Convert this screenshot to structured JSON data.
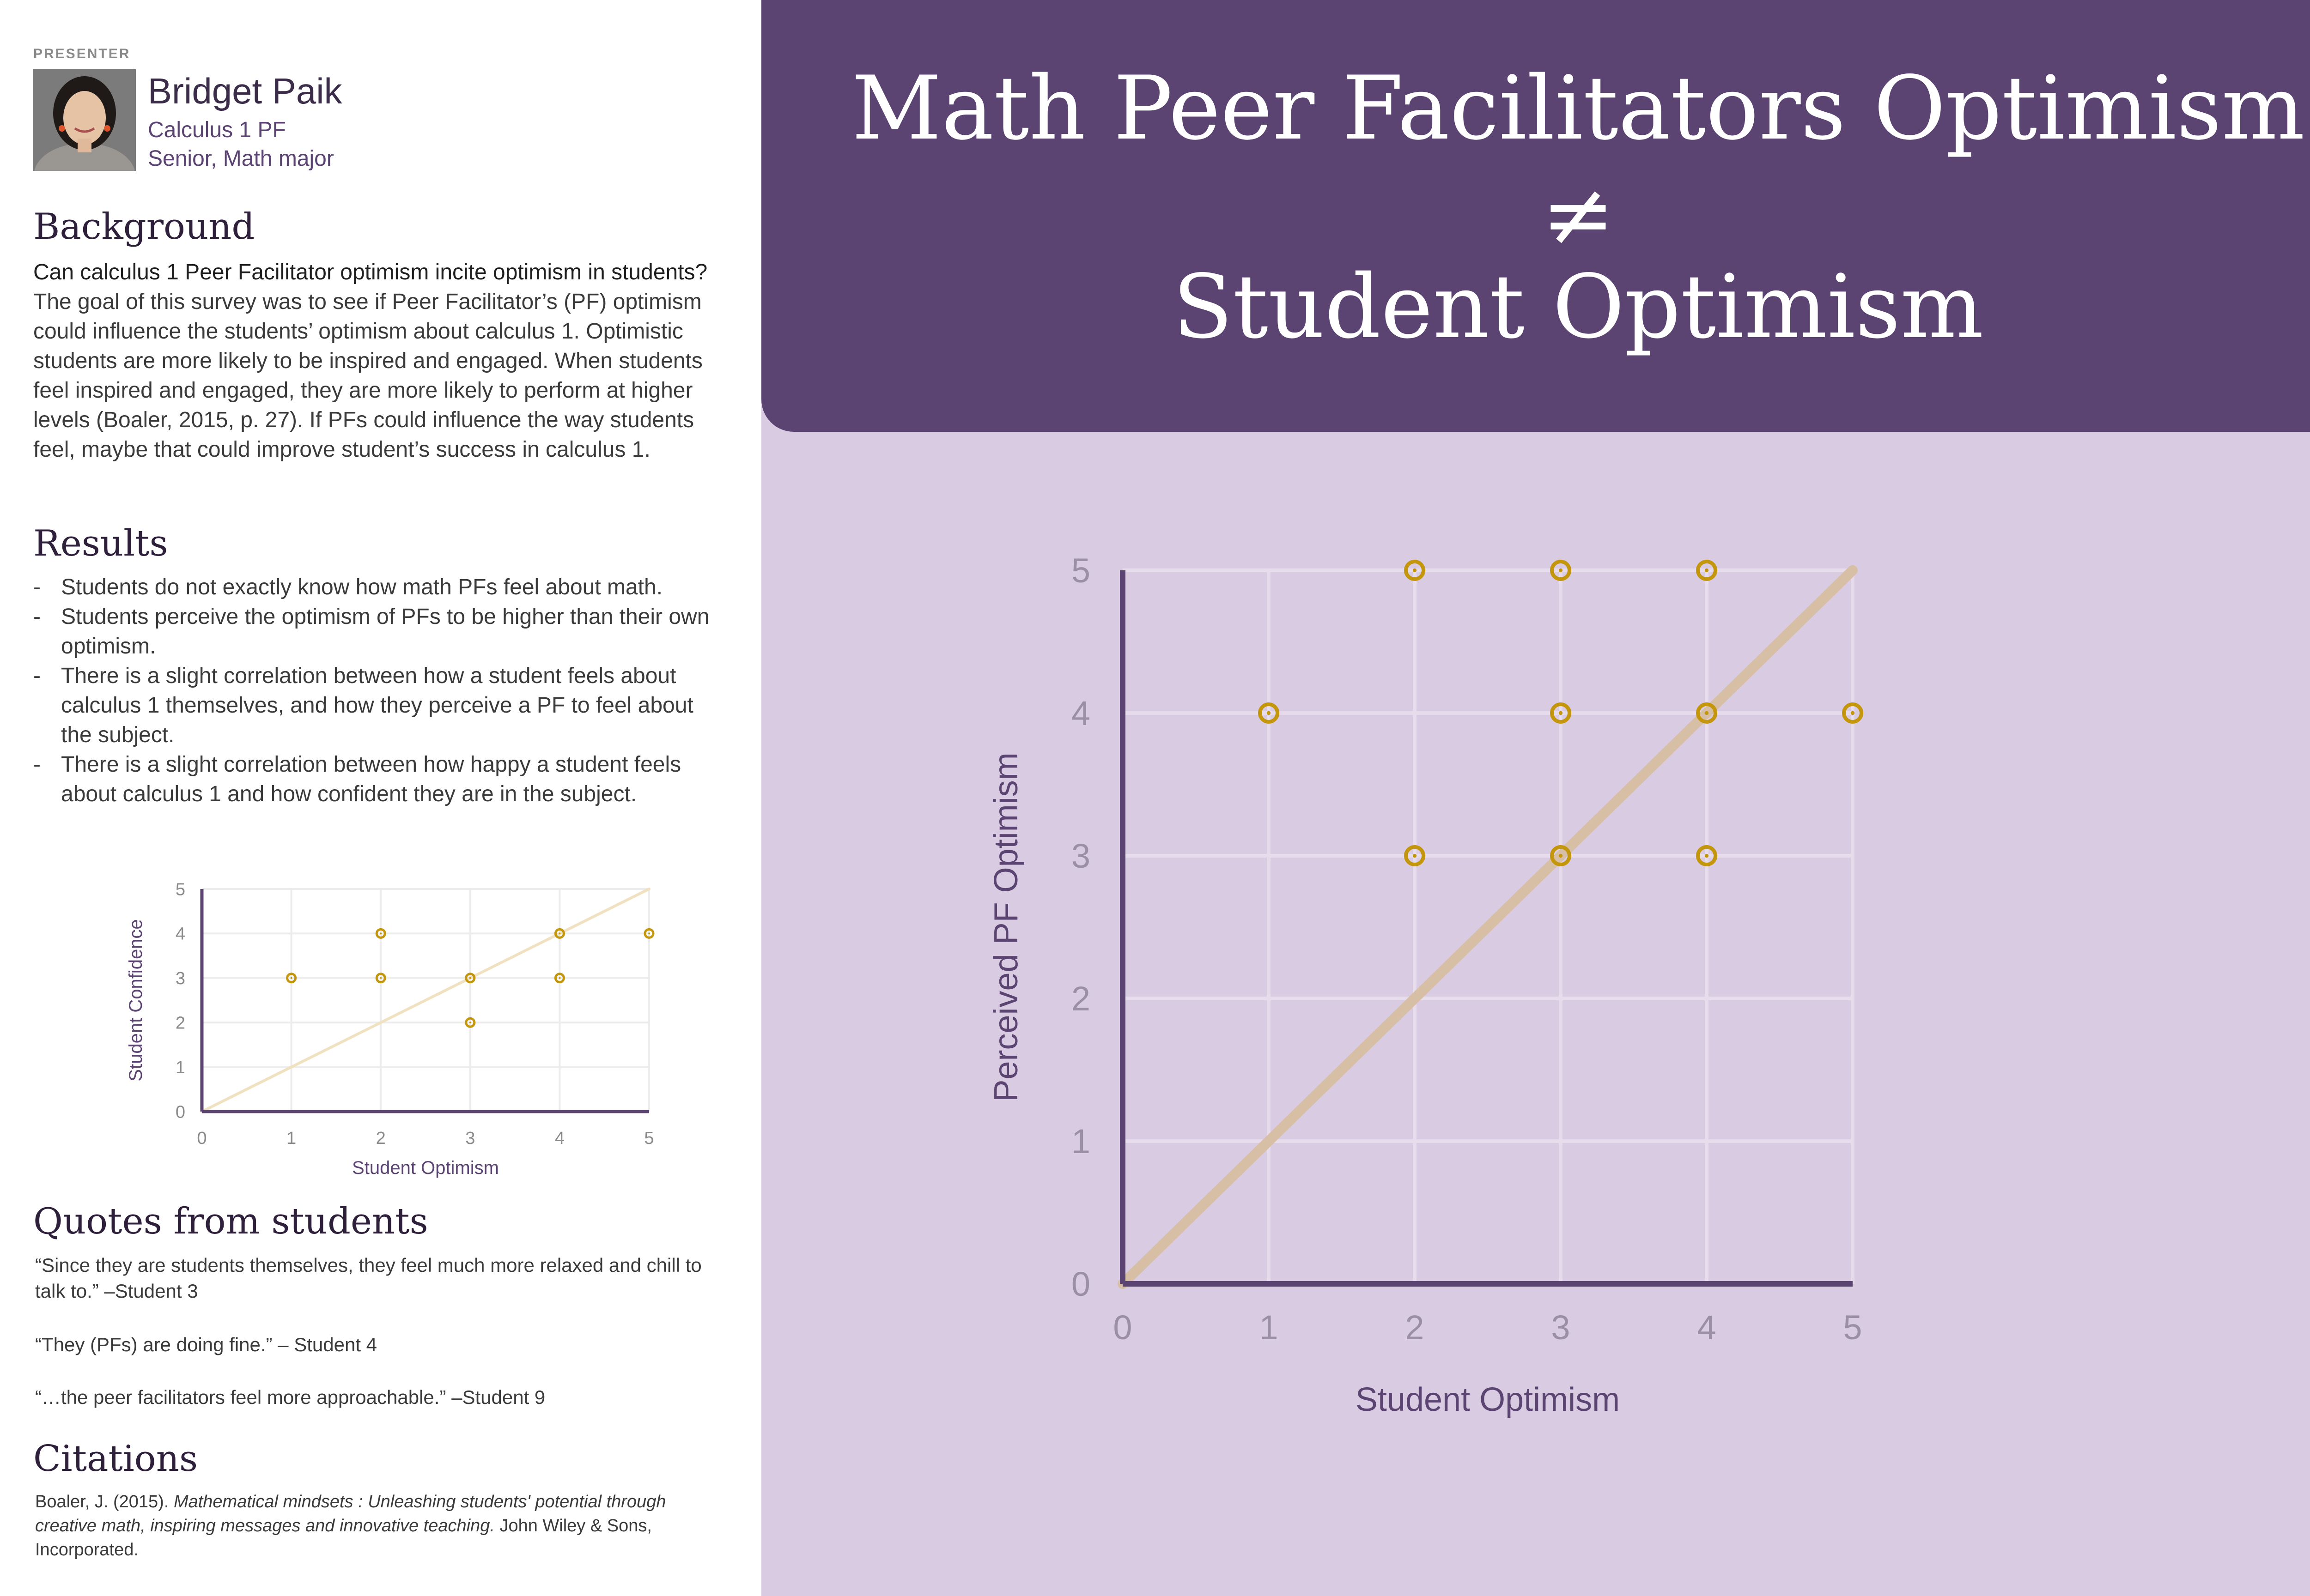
{
  "presenter": {
    "label": "PRESENTER",
    "name": "Bridget Paik",
    "role": "Calculus 1 PF",
    "standing": "Senior, Math major"
  },
  "background": {
    "heading": "Background",
    "lead": "Can calculus 1 Peer Facilitator optimism incite optimism in students?",
    "text": " The goal of this survey was to see if Peer Facilitator’s (PF) optimism could influence the students’ optimism about calculus 1. Optimistic students are more likely to be inspired and engaged. When students feel inspired and engaged, they are more likely to perform at higher levels (Boaler, 2015, p. 27). If PFs could influence the way students feel, maybe that could improve student’s success in calculus 1."
  },
  "results": {
    "heading": "Results",
    "bullets": [
      "Students do not exactly know how math PFs feel about math.",
      "Students perceive the optimism of PFs to be higher than their own optimism.",
      "There is a slight correlation between how a student feels about calculus 1 themselves, and how they perceive a PF to feel about the subject.",
      "There is a slight correlation between how happy a student feels about calculus 1 and how confident they are in the subject."
    ]
  },
  "quotes": {
    "heading": "Quotes from students",
    "items": [
      "“Since they are students themselves, they feel much more relaxed and chill to talk to.” –Student 3",
      "“They (PFs) are doing fine.” – Student 4",
      "“…the peer facilitators feel more approachable.” –Student 9"
    ]
  },
  "citations": {
    "heading": "Citations",
    "author": "Boaler, J. (2015). ",
    "title": "Mathematical mindsets : Unleashing students' potential through creative math, inspiring messages and innovative teaching.",
    "publisher": " John Wiley & Sons, Incorporated."
  },
  "banner": {
    "line1": "Math Peer Facilitators Optimism",
    "line2": "≠",
    "line3": "Student Optimism"
  },
  "colors": {
    "primary": "#5b4472",
    "panel": "#d9cbe2",
    "point": "#c4960c",
    "reference_line_main": "#d6bfa5",
    "reference_line_small": "#f0e2c0"
  },
  "chart_data": [
    {
      "type": "scatter",
      "xlabel": "Student Optimism",
      "ylabel": "Perceived PF Optimism",
      "xlim": [
        0,
        5
      ],
      "ylim": [
        0,
        5
      ],
      "xticks": [
        "0",
        "1",
        "2",
        "3",
        "4",
        "5"
      ],
      "yticks": [
        "0",
        "1",
        "2",
        "3",
        "4",
        "5"
      ],
      "grid": true,
      "reference_line": [
        [
          0,
          0
        ],
        [
          5,
          5
        ]
      ],
      "points": [
        {
          "x": 1,
          "y": 4
        },
        {
          "x": 2,
          "y": 5
        },
        {
          "x": 2,
          "y": 3
        },
        {
          "x": 3,
          "y": 5
        },
        {
          "x": 3,
          "y": 4
        },
        {
          "x": 3,
          "y": 3
        },
        {
          "x": 4,
          "y": 5
        },
        {
          "x": 4,
          "y": 4
        },
        {
          "x": 4,
          "y": 3
        },
        {
          "x": 5,
          "y": 4
        }
      ]
    },
    {
      "type": "scatter",
      "xlabel": "Student Optimism",
      "ylabel": "Student Confidence",
      "xlim": [
        0,
        5
      ],
      "ylim": [
        0,
        5
      ],
      "xticks": [
        "0",
        "1",
        "2",
        "3",
        "4",
        "5"
      ],
      "yticks": [
        "0",
        "1",
        "2",
        "3",
        "4",
        "5"
      ],
      "grid": true,
      "reference_line": [
        [
          0,
          0
        ],
        [
          5,
          5
        ]
      ],
      "points": [
        {
          "x": 1,
          "y": 3
        },
        {
          "x": 2,
          "y": 4
        },
        {
          "x": 2,
          "y": 3
        },
        {
          "x": 3,
          "y": 3
        },
        {
          "x": 3,
          "y": 2
        },
        {
          "x": 4,
          "y": 4
        },
        {
          "x": 4,
          "y": 3
        },
        {
          "x": 5,
          "y": 4
        }
      ]
    }
  ]
}
